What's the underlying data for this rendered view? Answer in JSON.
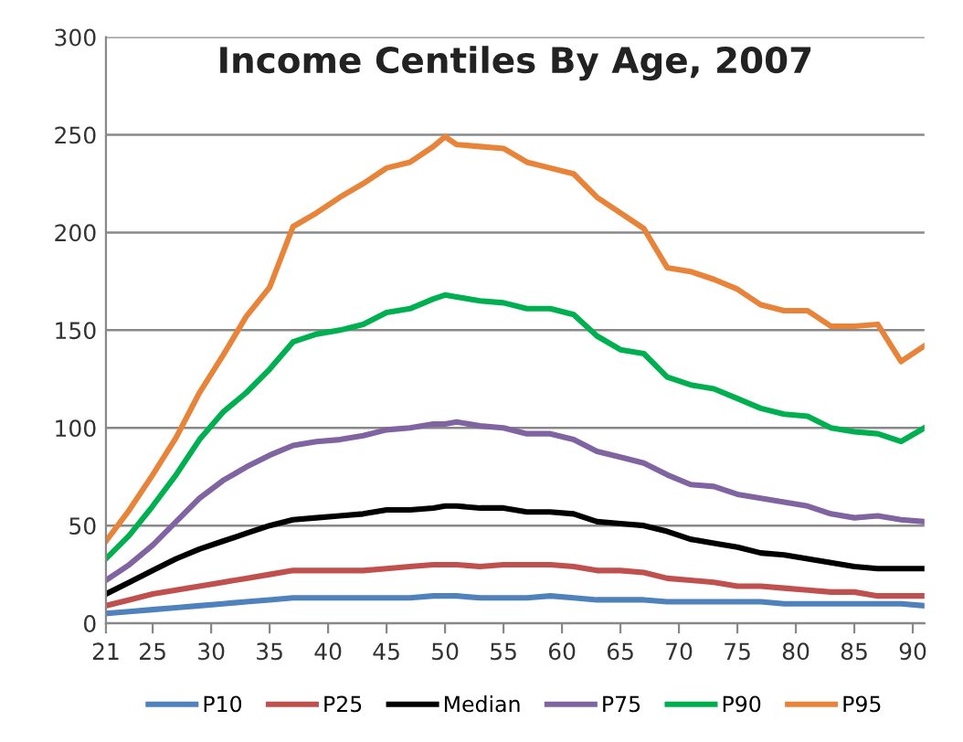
{
  "chart_data": {
    "type": "line",
    "title": "Income Centiles By Age, 2007",
    "x": [
      21,
      23,
      25,
      27,
      29,
      31,
      33,
      35,
      37,
      39,
      41,
      43,
      45,
      47,
      49,
      50,
      51,
      53,
      55,
      57,
      59,
      61,
      63,
      65,
      67,
      69,
      71,
      73,
      75,
      77,
      79,
      81,
      83,
      85,
      87,
      89,
      91
    ],
    "series": [
      {
        "name": "P10",
        "color": "#4f81bd",
        "values": [
          5,
          6,
          7,
          8,
          9,
          10,
          11,
          12,
          13,
          13,
          13,
          13,
          13,
          13,
          14,
          14,
          14,
          13,
          13,
          13,
          14,
          13,
          12,
          12,
          12,
          11,
          11,
          11,
          11,
          11,
          10,
          10,
          10,
          10,
          10,
          10,
          9
        ]
      },
      {
        "name": "P25",
        "color": "#c0504d",
        "values": [
          9,
          12,
          15,
          17,
          19,
          21,
          23,
          25,
          27,
          27,
          27,
          27,
          28,
          29,
          30,
          30,
          30,
          29,
          30,
          30,
          30,
          29,
          27,
          27,
          26,
          23,
          22,
          21,
          19,
          19,
          18,
          17,
          16,
          16,
          14,
          14,
          14
        ]
      },
      {
        "name": "Median",
        "color": "#000000",
        "values": [
          15,
          21,
          27,
          33,
          38,
          42,
          46,
          50,
          53,
          54,
          55,
          56,
          58,
          58,
          59,
          60,
          60,
          59,
          59,
          57,
          57,
          56,
          52,
          51,
          50,
          47,
          43,
          41,
          39,
          36,
          35,
          33,
          31,
          29,
          28,
          28,
          28
        ]
      },
      {
        "name": "P75",
        "color": "#8064a2",
        "values": [
          22,
          30,
          40,
          52,
          64,
          73,
          80,
          86,
          91,
          93,
          94,
          96,
          99,
          100,
          102,
          102,
          103,
          101,
          100,
          97,
          97,
          94,
          88,
          85,
          82,
          76,
          71,
          70,
          66,
          64,
          62,
          60,
          56,
          54,
          55,
          53,
          52
        ]
      },
      {
        "name": "P90",
        "color": "#00b050",
        "values": [
          33,
          45,
          60,
          76,
          94,
          108,
          118,
          130,
          144,
          148,
          150,
          153,
          159,
          161,
          166,
          168,
          167,
          165,
          164,
          161,
          161,
          158,
          147,
          140,
          138,
          126,
          122,
          120,
          115,
          110,
          107,
          106,
          100,
          98,
          97,
          93,
          100
        ]
      },
      {
        "name": "P95",
        "color": "#e8843a",
        "values": [
          42,
          58,
          76,
          95,
          118,
          137,
          157,
          172,
          203,
          210,
          218,
          225,
          233,
          236,
          244,
          249,
          245,
          244,
          243,
          236,
          233,
          230,
          218,
          210,
          202,
          182,
          180,
          176,
          171,
          163,
          160,
          160,
          152,
          152,
          153,
          134,
          142
        ]
      }
    ],
    "xlim": [
      21,
      91
    ],
    "xticks": [
      21,
      25,
      30,
      35,
      40,
      45,
      50,
      55,
      60,
      65,
      70,
      75,
      80,
      85,
      90
    ],
    "ylim": [
      0,
      300
    ],
    "yticks": [
      0,
      50,
      100,
      150,
      200,
      250,
      300
    ],
    "grid": "y",
    "legend": "bottom",
    "marker": "none",
    "line_style": "solid"
  }
}
